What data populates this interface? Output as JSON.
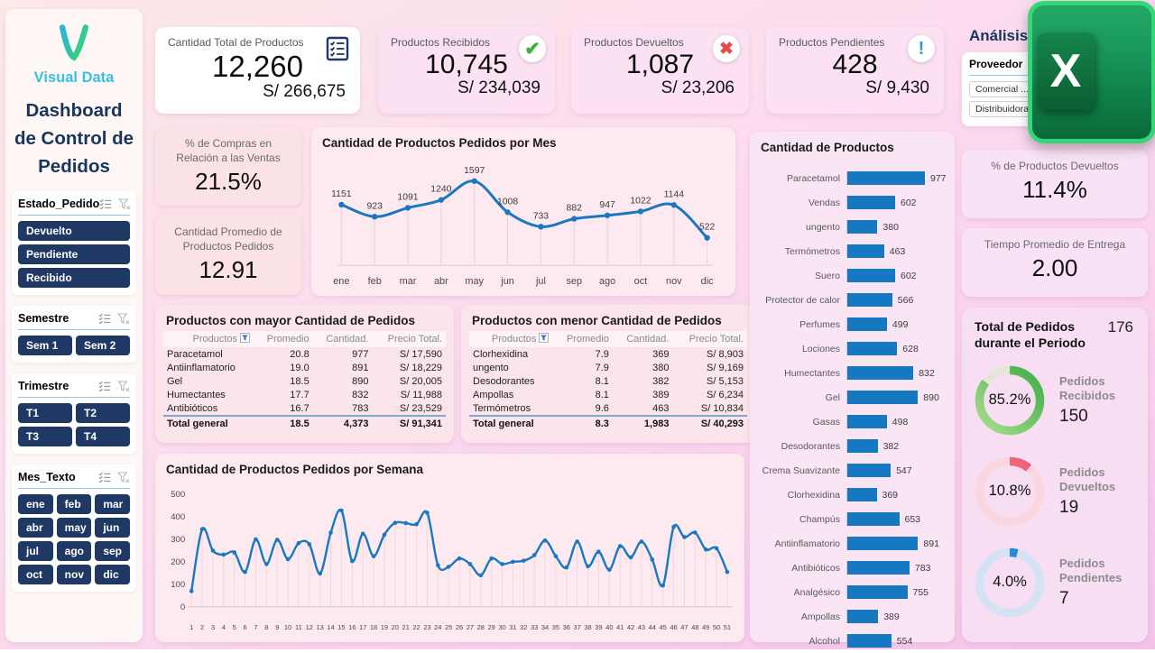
{
  "brand": {
    "name": "Visual Data",
    "title_lines": [
      "Dashboard",
      "de Control de",
      "Pedidos"
    ]
  },
  "analysis_title": "Análisis",
  "excel": {
    "letter": "X"
  },
  "kpis": [
    {
      "title": "Cantidad Total de Productos",
      "value": "12,260",
      "amount": "S/ 266,675",
      "icon": "checklist"
    },
    {
      "title": "Productos Recibidos",
      "value": "10,745",
      "amount": "S/ 234,039",
      "icon": "check"
    },
    {
      "title": "Productos Devueltos",
      "value": "1,087",
      "amount": "S/ 23,206",
      "icon": "x"
    },
    {
      "title": "Productos Pendientes",
      "value": "428",
      "amount": "S/ 9,430",
      "icon": "exclamation"
    }
  ],
  "stats": {
    "compras": {
      "title": "% de Compras en Relación a las Ventas",
      "value": "21.5%"
    },
    "promedio": {
      "title": "Cantidad Promedio de Productos Pedidos",
      "value": "12.91"
    },
    "devueltos_pct": {
      "title": "% de Productos Devueltos",
      "value": "11.4%"
    },
    "entrega": {
      "title": "Tiempo Promedio de Entrega",
      "value": "2.00"
    }
  },
  "slicers": {
    "estado": {
      "label": "Estado_Pedido",
      "items": [
        "Devuelto",
        "Pendiente",
        "Recibido"
      ]
    },
    "semestre": {
      "label": "Semestre",
      "items": [
        "Sem 1",
        "Sem 2"
      ]
    },
    "trimestre": {
      "label": "Trimestre",
      "items": [
        "T1",
        "T2",
        "T3",
        "T4"
      ]
    },
    "mes": {
      "label": "Mes_Texto",
      "items": [
        "ene",
        "feb",
        "mar",
        "abr",
        "may",
        "jun",
        "jul",
        "ago",
        "sep",
        "oct",
        "nov",
        "dic"
      ]
    },
    "proveedor": {
      "label": "Proveedor",
      "items": [
        "Comercial ...",
        "Distribuidora ..."
      ]
    }
  },
  "tables": [
    {
      "title": "Productos con mayor Cantidad de Pedidos",
      "headers": [
        "Productos",
        "Promedio",
        "Cantidad.",
        "Precio Total."
      ],
      "rows": [
        [
          "Paracetamol",
          "20.8",
          "977",
          "S/ 17,590"
        ],
        [
          "Antiinflamatorio",
          "19.0",
          "891",
          "S/ 18,229"
        ],
        [
          "Gel",
          "18.5",
          "890",
          "S/ 20,005"
        ],
        [
          "Humectantes",
          "17.7",
          "832",
          "S/ 11,988"
        ],
        [
          "Antibióticos",
          "16.7",
          "783",
          "S/ 23,529"
        ]
      ],
      "total": [
        "Total general",
        "18.5",
        "4,373",
        "S/ 91,341"
      ]
    },
    {
      "title": "Productos con menor Cantidad de Pedidos",
      "headers": [
        "Productos",
        "Promedio",
        "Cantidad.",
        "Precio Total."
      ],
      "rows": [
        [
          "Clorhexidina",
          "7.9",
          "369",
          "S/ 8,903"
        ],
        [
          "ungento",
          "7.9",
          "380",
          "S/ 9,169"
        ],
        [
          "Desodorantes",
          "8.1",
          "382",
          "S/ 5,153"
        ],
        [
          "Ampollas",
          "8.1",
          "389",
          "S/ 6,234"
        ],
        [
          "Termómetros",
          "9.6",
          "463",
          "S/ 10,834"
        ]
      ],
      "total": [
        "Total general",
        "8.3",
        "1,983",
        "S/ 40,293"
      ]
    }
  ],
  "chart_data": [
    {
      "type": "line",
      "title": "Cantidad de Productos Pedidos por Mes",
      "categories": [
        "ene",
        "feb",
        "mar",
        "abr",
        "may",
        "jun",
        "jul",
        "sep",
        "ago",
        "oct",
        "nov",
        "dic"
      ],
      "values": [
        1151,
        923,
        1091,
        1240,
        1597,
        1008,
        733,
        882,
        947,
        1022,
        1144,
        522
      ],
      "xlabel": "",
      "ylabel": "",
      "line_color": "#1b78c0",
      "data_labels": true,
      "grid": false
    },
    {
      "type": "line",
      "title": "Cantidad de Productos Pedidos por Semana",
      "categories": [
        "1",
        "2",
        "3",
        "4",
        "5",
        "6",
        "7",
        "8",
        "9",
        "10",
        "11",
        "12",
        "13",
        "14",
        "15",
        "16",
        "17",
        "18",
        "19",
        "20",
        "21",
        "22",
        "23",
        "24",
        "25",
        "26",
        "27",
        "28",
        "29",
        "30",
        "31",
        "32",
        "33",
        "34",
        "35",
        "36",
        "37",
        "38",
        "39",
        "40",
        "41",
        "42",
        "43",
        "44",
        "45",
        "46",
        "47",
        "48",
        "49",
        "50",
        "51"
      ],
      "values": [
        70,
        345,
        250,
        232,
        242,
        155,
        300,
        190,
        298,
        212,
        283,
        278,
        148,
        330,
        428,
        203,
        325,
        225,
        320,
        373,
        372,
        367,
        418,
        185,
        178,
        215,
        190,
        140,
        215,
        190,
        200,
        205,
        230,
        295,
        225,
        175,
        290,
        180,
        245,
        165,
        270,
        220,
        290,
        210,
        95,
        355,
        310,
        330,
        255,
        260,
        155
      ],
      "ylim": [
        0,
        500
      ],
      "yticks": [
        0,
        100,
        200,
        300,
        400,
        500
      ],
      "xlabel": "",
      "ylabel": "",
      "line_color": "#1b78c0",
      "data_labels": false,
      "grid": false
    },
    {
      "type": "bar",
      "orientation": "horizontal",
      "title": "Cantidad de Productos",
      "categories": [
        "Paracetamol",
        "Vendas",
        "ungento",
        "Termómetros",
        "Suero",
        "Protector de calor",
        "Perfumes",
        "Lociones",
        "Humectantes",
        "Gel",
        "Gasas",
        "Desodorantes",
        "Crema Suavizante",
        "Clorhexidina",
        "Champús",
        "Antiinflamatorio",
        "Antibióticos",
        "Analgésico",
        "Ampollas",
        "Alcohol"
      ],
      "values": [
        977,
        602,
        380,
        463,
        602,
        566,
        499,
        628,
        832,
        890,
        498,
        382,
        547,
        369,
        653,
        891,
        783,
        755,
        389,
        554
      ],
      "bar_color": "#1778c2",
      "data_labels": true
    },
    {
      "type": "donut",
      "title": "Total de Pedidos durante el Periodo",
      "total": "176",
      "items": [
        {
          "pct": 85.2,
          "pct_label": "85.2%",
          "label": "Pedidos Recibidos",
          "value": "150",
          "c1": "#a9dd8d",
          "c2": "#3fae49",
          "track": "#e8e4d9"
        },
        {
          "pct": 10.8,
          "pct_label": "10.8%",
          "label": "Pedidos Devueltos",
          "value": "19",
          "c1": "#f4a09b",
          "c2": "#ee5570",
          "track": "#fad7de"
        },
        {
          "pct": 4.0,
          "pct_label": "4.0%",
          "label": "Pedidos Pendientes",
          "value": "7",
          "c1": "#2f9ce0",
          "c2": "#1f86d0",
          "track": "#d4e2f4"
        }
      ]
    }
  ]
}
